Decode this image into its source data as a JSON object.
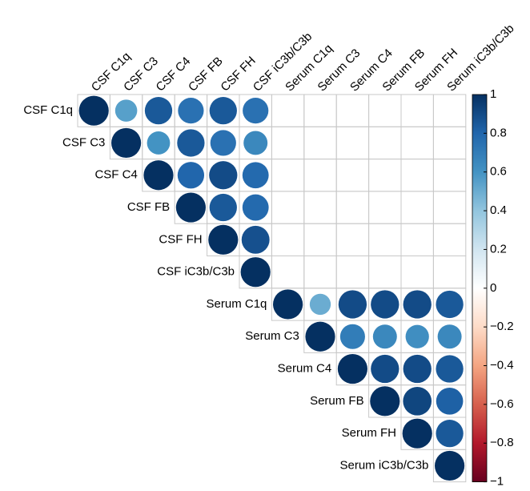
{
  "chart_data": {
    "type": "corrplot",
    "variables": [
      "CSF C1q",
      "CSF C3",
      "CSF C4",
      "CSF FB",
      "CSF FH",
      "CSF iC3b/C3b",
      "Serum C1q",
      "Serum C3",
      "Serum C4",
      "Serum FB",
      "Serum FH",
      "Serum iC3b/C3b"
    ],
    "matrix": [
      [
        1,
        0.55,
        0.85,
        0.75,
        0.85,
        0.75,
        null,
        null,
        null,
        null,
        null,
        null
      ],
      [
        null,
        1,
        0.6,
        0.85,
        0.75,
        0.65,
        null,
        null,
        null,
        null,
        null,
        null
      ],
      [
        null,
        null,
        1,
        0.8,
        0.9,
        0.78,
        null,
        null,
        null,
        null,
        null,
        null
      ],
      [
        null,
        null,
        null,
        1,
        0.85,
        0.78,
        null,
        null,
        null,
        null,
        null,
        null
      ],
      [
        null,
        null,
        null,
        null,
        1,
        0.88,
        null,
        null,
        null,
        null,
        null,
        null
      ],
      [
        null,
        null,
        null,
        null,
        null,
        1,
        null,
        null,
        null,
        null,
        null,
        null
      ],
      [
        null,
        null,
        null,
        null,
        null,
        null,
        1,
        0.5,
        0.9,
        0.9,
        0.9,
        0.85
      ],
      [
        null,
        null,
        null,
        null,
        null,
        null,
        null,
        1,
        0.7,
        0.65,
        0.62,
        0.65
      ],
      [
        null,
        null,
        null,
        null,
        null,
        null,
        null,
        null,
        1,
        0.9,
        0.9,
        0.85
      ],
      [
        null,
        null,
        null,
        null,
        null,
        null,
        null,
        null,
        null,
        1,
        0.92,
        0.82
      ],
      [
        null,
        null,
        null,
        null,
        null,
        null,
        null,
        null,
        null,
        null,
        1,
        0.85
      ],
      [
        null,
        null,
        null,
        null,
        null,
        null,
        null,
        null,
        null,
        null,
        null,
        1
      ]
    ],
    "colorscale": [
      "#67001F",
      "#B2182B",
      "#D6604D",
      "#F4A582",
      "#FDDBC7",
      "#FFFFFF",
      "#D1E5F0",
      "#92C5DE",
      "#4393C3",
      "#2166AC",
      "#053061"
    ],
    "clim": [
      -1,
      1
    ],
    "cticks": [
      {
        "value": -1,
        "label": "−1"
      },
      {
        "value": -0.8,
        "label": "−0.8"
      },
      {
        "value": -0.6,
        "label": "−0.6"
      },
      {
        "value": -0.4,
        "label": "−0.4"
      },
      {
        "value": -0.2,
        "label": "−0.2"
      },
      0,
      0.2,
      0.4,
      0.6,
      0.8,
      1
    ]
  }
}
